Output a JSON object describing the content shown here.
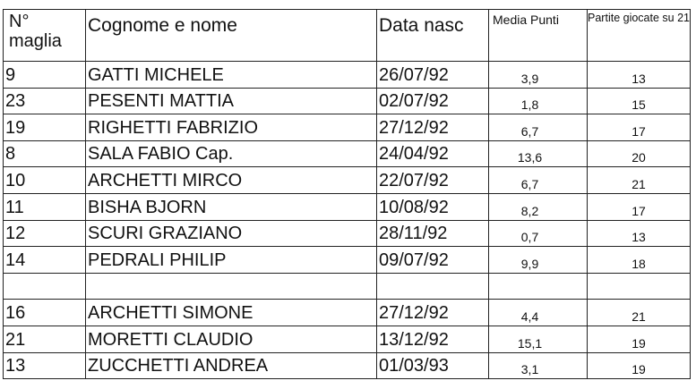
{
  "headers": {
    "number": "N° maglia",
    "name": "Cognome e nome",
    "birth": "Data nasc",
    "avg": "Media Punti",
    "games": "Partite giocate su 21"
  },
  "rows": [
    {
      "number": "9",
      "name": "GATTI MICHELE",
      "birth": "26/07/92",
      "avg": "3,9",
      "games": "13"
    },
    {
      "number": "23",
      "name": "PESENTI MATTIA",
      "birth": "02/07/92",
      "avg": "1,8",
      "games": "15"
    },
    {
      "number": "19",
      "name": "RIGHETTI FABRIZIO",
      "birth": "27/12/92",
      "avg": "6,7",
      "games": "17"
    },
    {
      "number": "8",
      "name": "SALA FABIO Cap.",
      "birth": "24/04/92",
      "avg": "13,6",
      "games": "20"
    },
    {
      "number": "10",
      "name": "ARCHETTI MIRCO",
      "birth": "22/07/92",
      "avg": "6,7",
      "games": "21"
    },
    {
      "number": "11",
      "name": "BISHA BJORN",
      "birth": "10/08/92",
      "avg": "8,2",
      "games": "17"
    },
    {
      "number": "12",
      "name": "SCURI GRAZIANO",
      "birth": "28/11/92",
      "avg": "0,7",
      "games": "13"
    },
    {
      "number": "14",
      "name": "PEDRALI PHILIP",
      "birth": "09/07/92",
      "avg": "9,9",
      "games": "18"
    },
    {
      "number": "",
      "name": "",
      "birth": "",
      "avg": "",
      "games": ""
    },
    {
      "number": "16",
      "name": "ARCHETTI SIMONE",
      "birth": "27/12/92",
      "avg": "4,4",
      "games": "21"
    },
    {
      "number": "21",
      "name": "MORETTI CLAUDIO",
      "birth": "13/12/92",
      "avg": "15,1",
      "games": "19"
    },
    {
      "number": "13",
      "name": "ZUCCHETTI ANDREA",
      "birth": "01/03/93",
      "avg": "3,1",
      "games": "19"
    }
  ]
}
